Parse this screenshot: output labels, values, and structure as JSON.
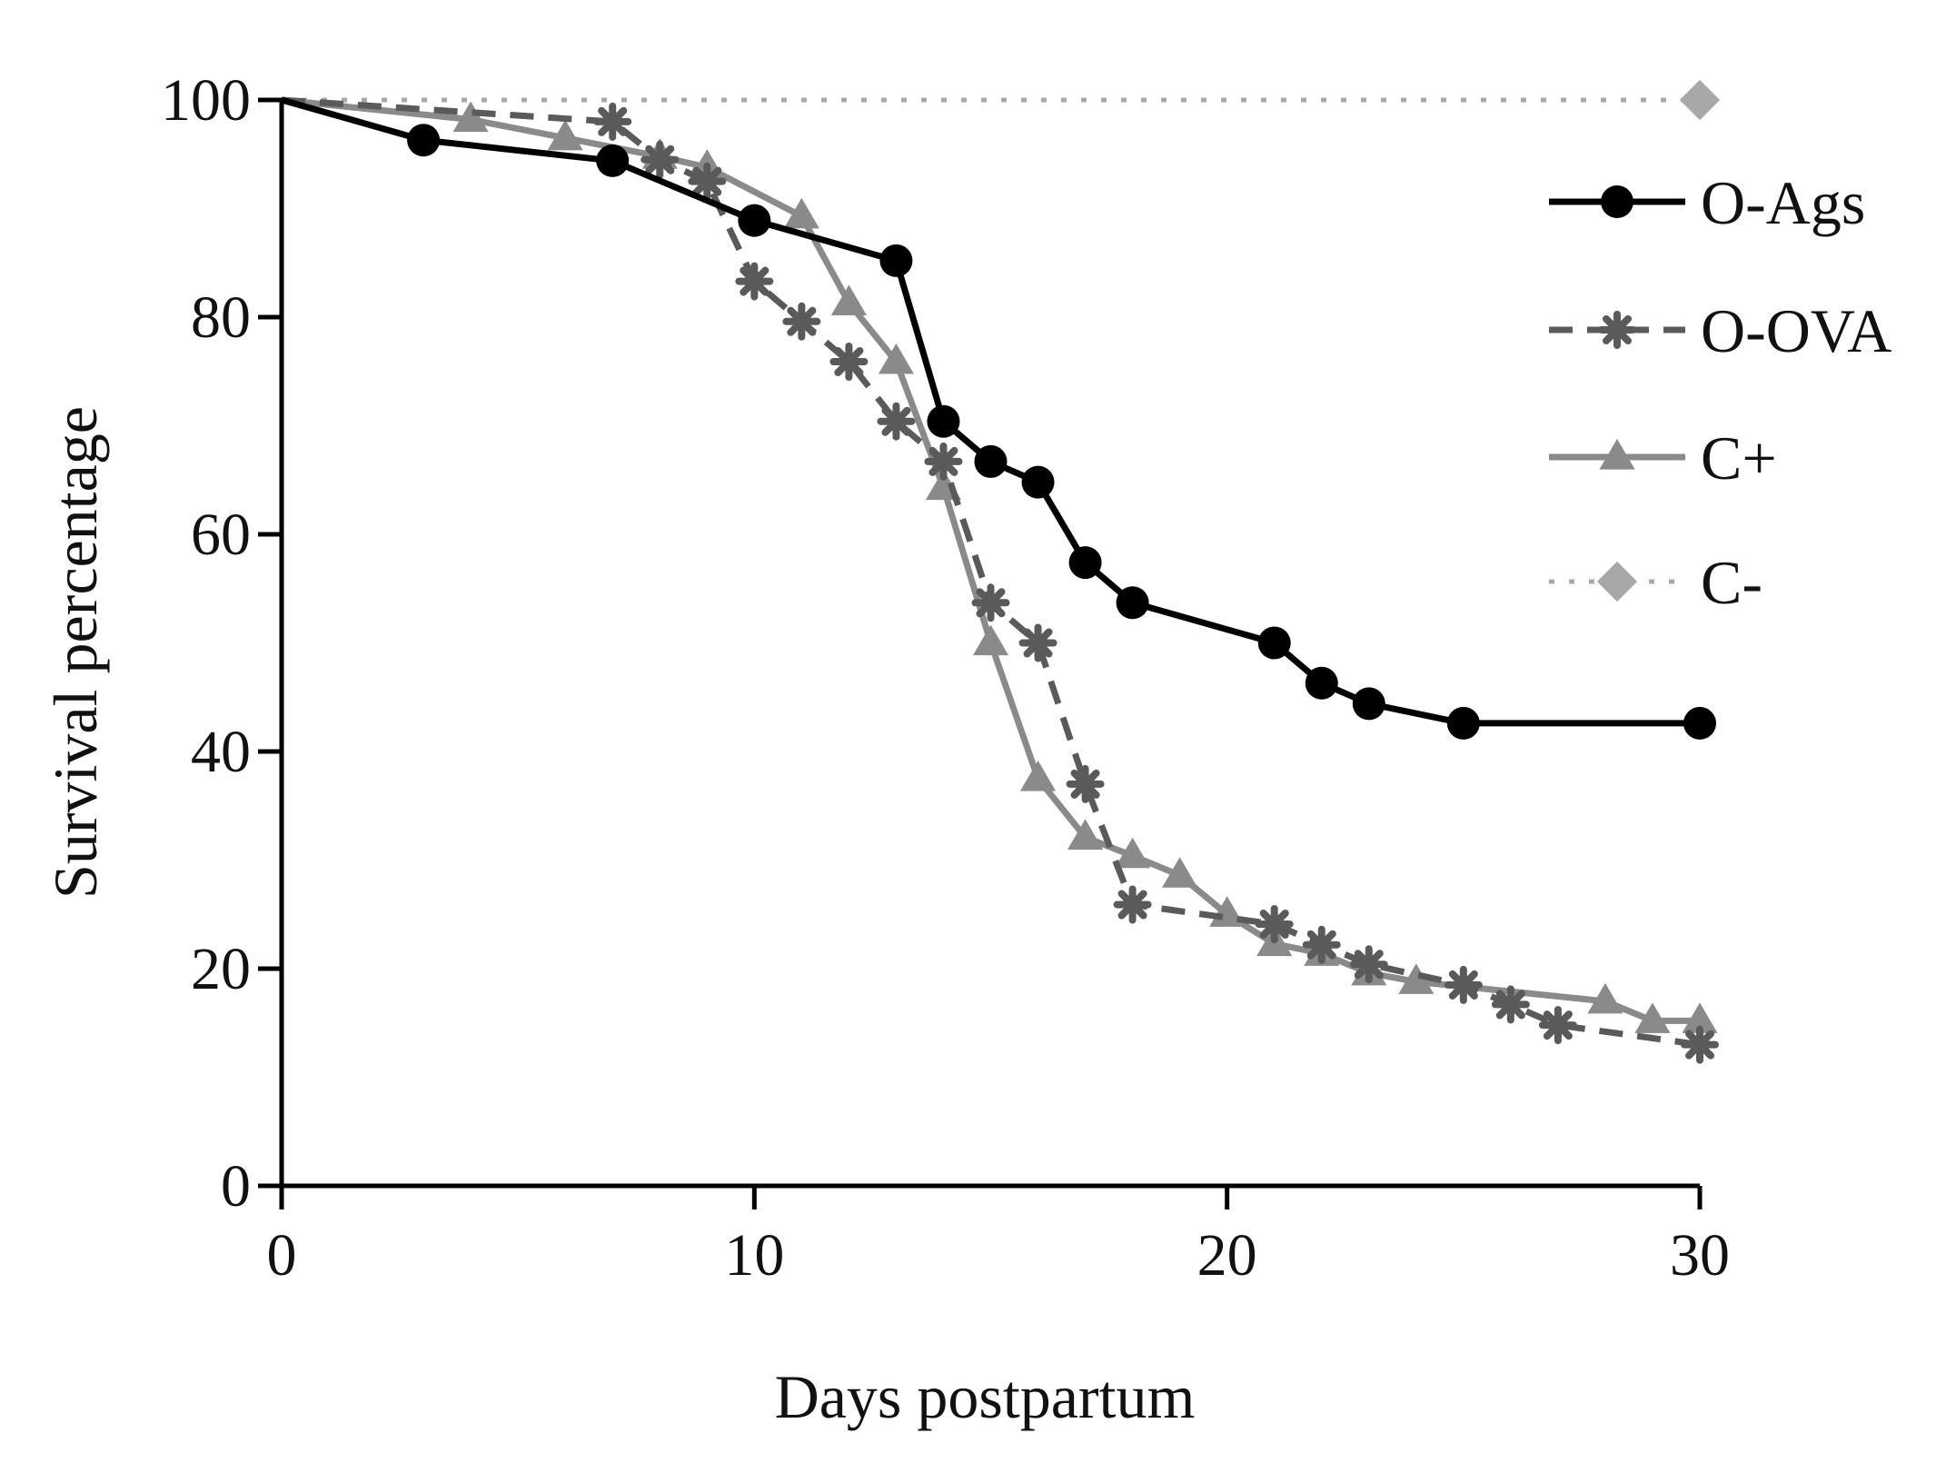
{
  "chart_data": {
    "type": "line",
    "title": "",
    "xlabel": "Days postpartum",
    "ylabel": "Survival percentage",
    "xlim": [
      0,
      30
    ],
    "ylim": [
      0,
      100
    ],
    "xticks": [
      0,
      10,
      20,
      30
    ],
    "yticks": [
      0,
      20,
      40,
      60,
      80,
      100
    ],
    "grid": false,
    "legend_position": "top-right",
    "series": [
      {
        "name": "O-Ags",
        "marker": "circle",
        "line_style": "solid",
        "color": "#000000",
        "x": [
          0,
          3,
          7,
          10,
          13,
          14,
          15,
          16,
          17,
          18,
          21,
          22,
          23,
          25,
          30
        ],
        "y": [
          100,
          96.3,
          94.4,
          88.9,
          85.2,
          70.4,
          66.7,
          64.8,
          57.4,
          53.7,
          50,
          46.3,
          44.4,
          42.6,
          42.6
        ]
      },
      {
        "name": "O-OVA",
        "marker": "asterisk",
        "line_style": "dashed",
        "color": "#5a5a5a",
        "x": [
          0,
          7,
          8,
          9,
          10,
          11,
          12,
          13,
          14,
          15,
          16,
          17,
          18,
          21,
          22,
          23,
          25,
          26,
          27,
          30
        ],
        "y": [
          100,
          98,
          94.5,
          92.5,
          83.3,
          79.6,
          75.9,
          70.4,
          66.7,
          53.7,
          50,
          37,
          25.9,
          24.1,
          22.2,
          20.4,
          18.5,
          16.7,
          14.8,
          13
        ]
      },
      {
        "name": "C+",
        "marker": "triangle",
        "line_style": "solid",
        "color": "#8a8a8a",
        "x": [
          0,
          4,
          6,
          8,
          9,
          11,
          12,
          13,
          14,
          15,
          16,
          17,
          18,
          19,
          20,
          21,
          22,
          23,
          24,
          28,
          29,
          30
        ],
        "y": [
          100,
          98.2,
          96.5,
          94.8,
          93.8,
          89.3,
          81.3,
          75.9,
          64.3,
          50,
          37.5,
          32.1,
          30.4,
          28.6,
          25,
          22.3,
          21.4,
          19.6,
          18.8,
          17,
          15.2,
          15.2
        ]
      },
      {
        "name": "C-",
        "marker": "diamond",
        "line_style": "dotted",
        "color": "#a8a8a8",
        "x": [
          0,
          30
        ],
        "y": [
          100,
          100
        ]
      }
    ]
  }
}
